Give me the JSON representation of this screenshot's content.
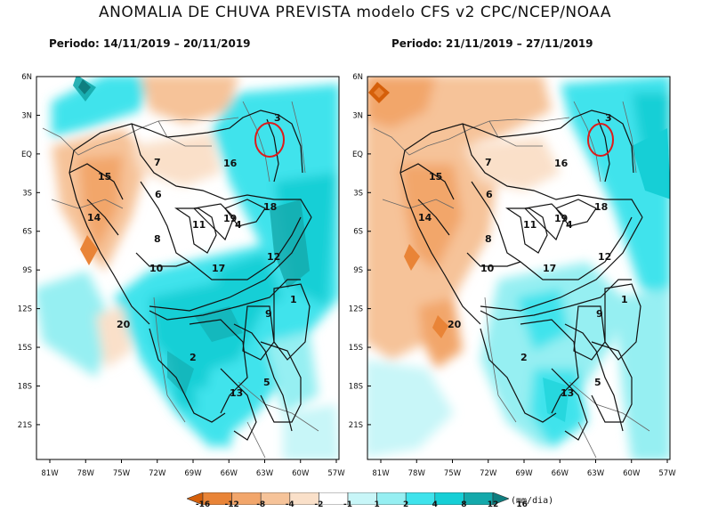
{
  "title": "ANOMALIA DE CHUVA PREVISTA modelo CFS v2 CPC/NCEP/NOAA",
  "panels": [
    {
      "period_label": "Periodo:",
      "period_range": "14/11/2019 – 20/11/2019",
      "basins": {
        "b3": "3",
        "b7": "7",
        "b16": "16",
        "b15": "15",
        "b6": "6",
        "b14": "14",
        "b11": "11",
        "b19": "19",
        "b4": "4",
        "b18": "18",
        "b8": "8",
        "b12": "12",
        "b10": "10",
        "b17": "17",
        "b1": "1",
        "b9": "9",
        "b20": "20",
        "b2": "2",
        "b5": "5",
        "b13": "13"
      }
    },
    {
      "period_label": "Periodo:",
      "period_range": "21/11/2019 – 27/11/2019",
      "basins": {
        "b3": "3",
        "b7": "7",
        "b16": "16",
        "b15": "15",
        "b6": "6",
        "b14": "14",
        "b11": "11",
        "b19": "19",
        "b4": "4",
        "b18": "18",
        "b8": "8",
        "b12": "12",
        "b10": "10",
        "b17": "17",
        "b1": "1",
        "b9": "9",
        "b20": "20",
        "b2": "2",
        "b5": "5",
        "b13": "13"
      }
    }
  ],
  "axes": {
    "lat": [
      "6N",
      "3N",
      "EQ",
      "3S",
      "6S",
      "9S",
      "12S",
      "15S",
      "18S",
      "21S"
    ],
    "lon": [
      "81W",
      "78W",
      "75W",
      "72W",
      "69W",
      "66W",
      "63W",
      "60W",
      "57W"
    ]
  },
  "colorbar": {
    "labels": [
      "-16",
      "-12",
      "-8",
      "-4",
      "-2",
      "-1",
      "1",
      "2",
      "4",
      "8",
      "12",
      "16"
    ],
    "units": "(mm/dia)",
    "colors": [
      "#d55f0a",
      "#e98437",
      "#f2a66b",
      "#f6c399",
      "#fae0c9",
      "#ffffff",
      "#c8f6f8",
      "#96eff2",
      "#3fe3ec",
      "#16cfd6",
      "#14a9ab",
      "#0e7e80"
    ]
  },
  "highlight_color": "#dd1b1b"
}
